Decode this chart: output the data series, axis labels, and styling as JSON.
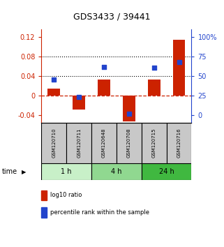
{
  "title": "GDS3433 / 39441",
  "samples": [
    "GSM120710",
    "GSM120711",
    "GSM120648",
    "GSM120708",
    "GSM120715",
    "GSM120716"
  ],
  "groups": [
    {
      "label": "1 h",
      "indices": [
        0,
        1
      ],
      "color": "#c8f0c8"
    },
    {
      "label": "4 h",
      "indices": [
        2,
        3
      ],
      "color": "#90d890"
    },
    {
      "label": "24 h",
      "indices": [
        4,
        5
      ],
      "color": "#40b840"
    }
  ],
  "log10_ratio": [
    0.015,
    -0.028,
    0.033,
    -0.052,
    0.033,
    0.115
  ],
  "percentile_rank": [
    0.46,
    0.23,
    0.62,
    0.02,
    0.61,
    0.68
  ],
  "left_ylim": [
    -0.055,
    0.135
  ],
  "left_yticks": [
    -0.04,
    0,
    0.04,
    0.08,
    0.12
  ],
  "bar_color": "#cc2200",
  "dot_color": "#2244cc",
  "dotted_lines": [
    0.04,
    0.08
  ],
  "bar_width": 0.5,
  "dot_size": 20,
  "background_plot": "#ffffff",
  "background_sample": "#c8c8c8",
  "legend_red": "log10 ratio",
  "legend_blue": "percentile rank within the sample",
  "left_axis_color": "#cc2200",
  "right_axis_color": "#2244cc",
  "zero_line_color": "#cc2200",
  "right_ticks_pct": [
    0,
    25,
    50,
    75,
    100
  ],
  "right_tick_labels": [
    "0",
    "25",
    "50",
    "75",
    "100%"
  ]
}
